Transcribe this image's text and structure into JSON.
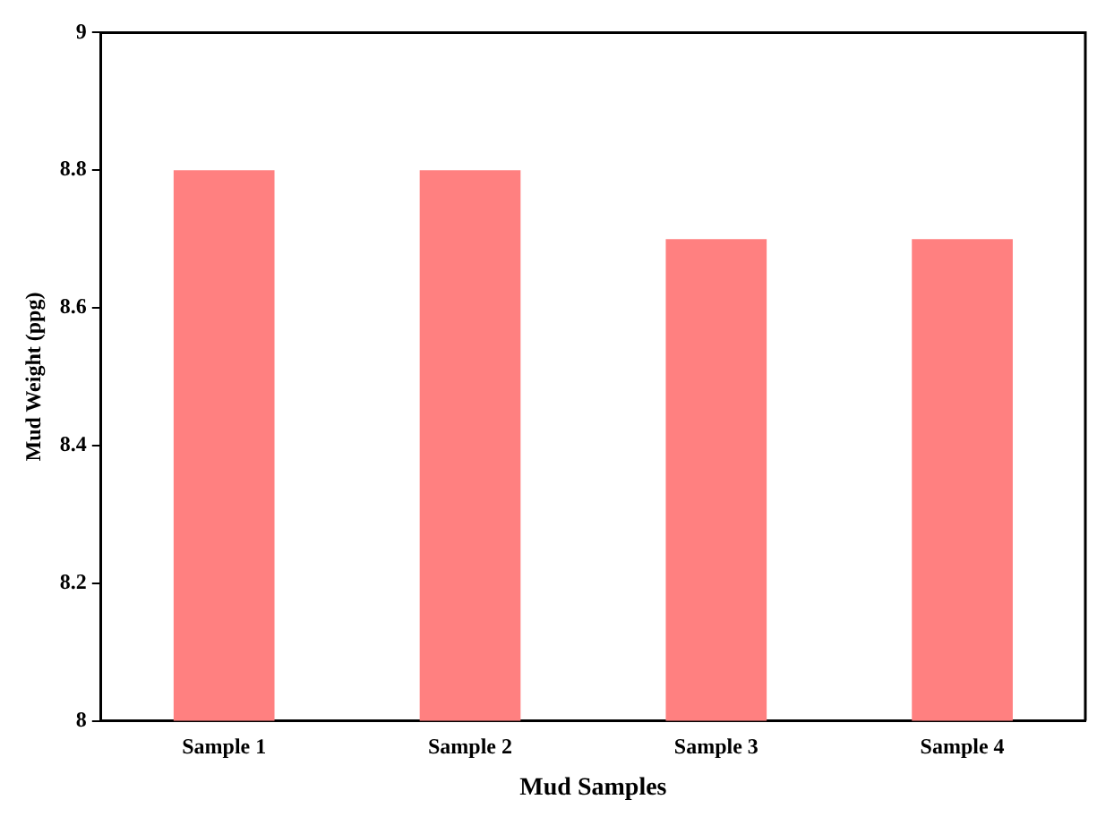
{
  "chart_data": {
    "type": "bar",
    "xlabel": "Mud Samples",
    "ylabel": "Mud Weight (ppg)",
    "categories": [
      "Sample 1",
      "Sample 2",
      "Sample 3",
      "Sample 4"
    ],
    "values": [
      8.8,
      8.8,
      8.7,
      8.7
    ],
    "color": "#ff8080",
    "ylim": [
      8,
      9
    ],
    "yticks": [
      8,
      8.2,
      8.4,
      8.6,
      8.8,
      9
    ],
    "grid": false,
    "legend": false
  }
}
